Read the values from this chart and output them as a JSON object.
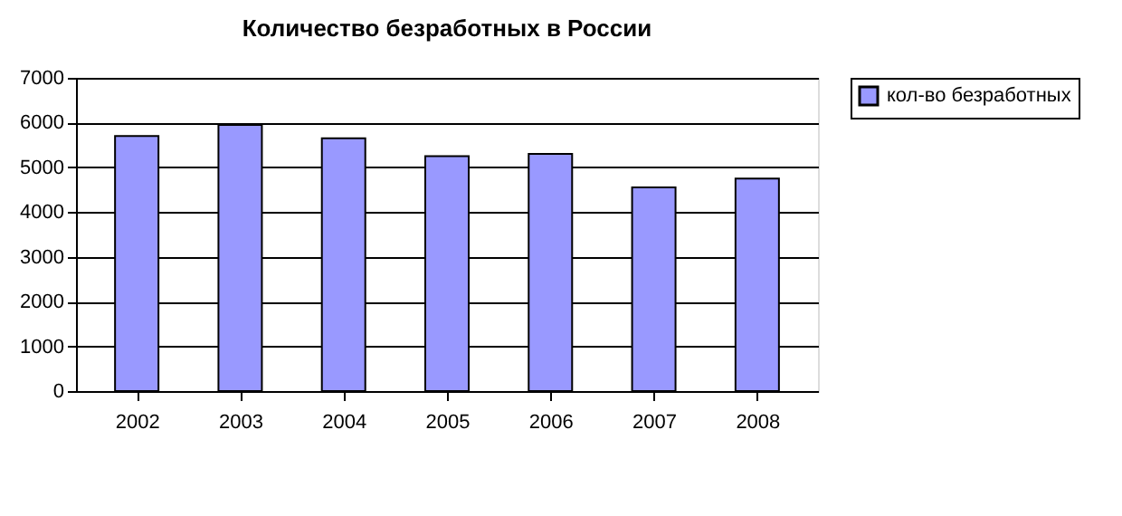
{
  "chart_data": {
    "type": "bar",
    "title": "Количество безработных в России",
    "categories": [
      "2002",
      "2003",
      "2004",
      "2005",
      "2006",
      "2007",
      "2008"
    ],
    "series": [
      {
        "name": "кол-во безработных",
        "color": "#9999ff",
        "values": [
          5700,
          5950,
          5650,
          5250,
          5300,
          4550,
          4750
        ]
      }
    ],
    "ylim": [
      0,
      7000
    ],
    "yticks": [
      0,
      1000,
      2000,
      3000,
      4000,
      5000,
      6000,
      7000
    ],
    "grid": "y",
    "legend": "right"
  }
}
